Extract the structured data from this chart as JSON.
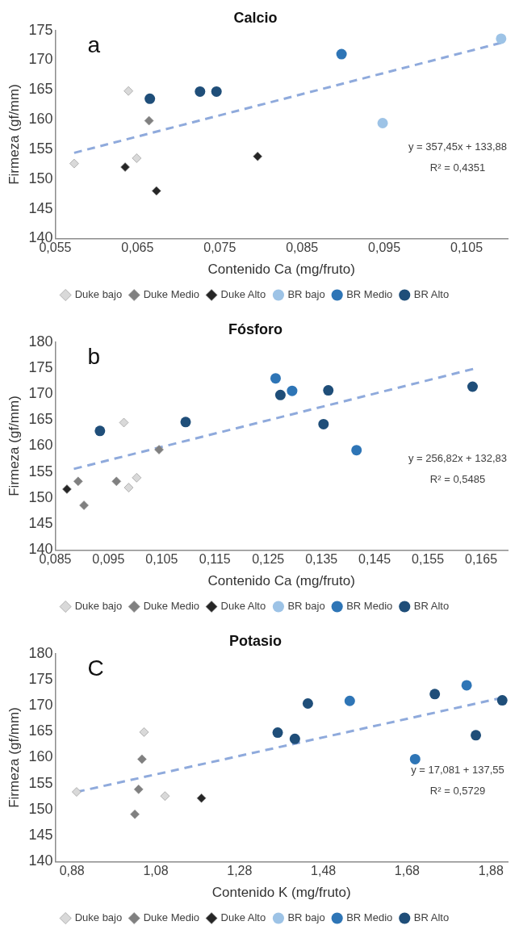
{
  "chart_data": [
    {
      "type": "scatter",
      "title": "Calcio",
      "xlabel": "Contenido Ca (mg/fruto)",
      "ylabel": "Firmeza (gf/mm)",
      "annotations": [
        "a",
        "y = 357,45x + 133,88",
        "R² = 0,4351"
      ],
      "xlim": [
        0.055,
        0.11
      ],
      "xticks": [
        {
          "value": 0.055,
          "label": "0,055"
        },
        {
          "value": 0.065,
          "label": "0,065"
        },
        {
          "value": 0.075,
          "label": "0,075"
        },
        {
          "value": 0.085,
          "label": "0,085"
        },
        {
          "value": 0.095,
          "label": "0,095"
        },
        {
          "value": 0.105,
          "label": "0,105"
        }
      ],
      "ylim": [
        140,
        175
      ],
      "yticks": [
        140,
        145,
        150,
        155,
        160,
        165,
        170,
        175
      ],
      "grid": false,
      "legend": "bottom",
      "series": [
        {
          "name": "Duke bajo",
          "color": "#d9d9d9",
          "marker": "diamond",
          "x": [
            0.0573,
            0.0639,
            0.0649
          ],
          "values": [
            152.6,
            164.8,
            153.5
          ]
        },
        {
          "name": "Duke Medio",
          "color": "#808080",
          "marker": "diamond",
          "x": [
            0.0664
          ],
          "values": [
            159.8
          ]
        },
        {
          "name": "Duke Alto",
          "color": "#262626",
          "marker": "diamond",
          "x": [
            0.0635,
            0.0673,
            0.0796
          ],
          "values": [
            152.0,
            148.0,
            153.8
          ]
        },
        {
          "name": "BR bajo",
          "color": "#9dc3e6",
          "marker": "circle",
          "x": [
            0.0948,
            0.1092
          ],
          "values": [
            159.4,
            173.6
          ]
        },
        {
          "name": "BR Medio",
          "color": "#2e75b6",
          "marker": "circle",
          "x": [
            0.0898
          ],
          "values": [
            171.0
          ]
        },
        {
          "name": "BR Alto",
          "color": "#1f4e79",
          "marker": "circle",
          "x": [
            0.0665,
            0.0726,
            0.0746
          ],
          "values": [
            163.5,
            164.7,
            164.7
          ]
        },
        {
          "type": "line",
          "color": "#8faadc",
          "marker": "none",
          "line_style": "dashed",
          "x": [
            0.0573,
            0.1092
          ],
          "values": [
            154.4,
            172.9
          ]
        }
      ]
    },
    {
      "type": "scatter",
      "title": "Fósforo",
      "xlabel": "Contenido Ca (mg/fruto)",
      "ylabel": "Firmeza (gf/mm)",
      "annotations": [
        "b",
        "y = 256,82x + 132,83",
        "R² = 0,5485"
      ],
      "xlim": [
        0.085,
        0.17
      ],
      "xticks": [
        {
          "value": 0.085,
          "label": "0,085"
        },
        {
          "value": 0.095,
          "label": "0,095"
        },
        {
          "value": 0.105,
          "label": "0,105"
        },
        {
          "value": 0.115,
          "label": "0,115"
        },
        {
          "value": 0.125,
          "label": "0,125"
        },
        {
          "value": 0.135,
          "label": "0,135"
        },
        {
          "value": 0.145,
          "label": "0,145"
        },
        {
          "value": 0.155,
          "label": "0,155"
        },
        {
          "value": 0.165,
          "label": "0,165"
        }
      ],
      "ylim": [
        140,
        180
      ],
      "yticks": [
        140,
        145,
        150,
        155,
        160,
        165,
        170,
        175,
        180
      ],
      "grid": false,
      "legend": "bottom",
      "series": [
        {
          "name": "Duke bajo",
          "color": "#d9d9d9",
          "marker": "diamond",
          "x": [
            0.0979,
            0.0988,
            0.1003
          ],
          "values": [
            164.5,
            152.0,
            153.9
          ]
        },
        {
          "name": "Duke Medio",
          "color": "#808080",
          "marker": "diamond",
          "x": [
            0.0893,
            0.0904,
            0.0965,
            0.1045
          ],
          "values": [
            153.2,
            148.6,
            153.2,
            159.3
          ]
        },
        {
          "name": "Duke Alto",
          "color": "#262626",
          "marker": "diamond",
          "x": [
            0.0872
          ],
          "values": [
            151.7
          ]
        },
        {
          "name": "BR bajo",
          "color": "#9dc3e6",
          "marker": "circle"
        },
        {
          "name": "BR Medio",
          "color": "#2e75b6",
          "marker": "circle",
          "x": [
            0.1264,
            0.1295,
            0.1416
          ],
          "values": [
            173.0,
            170.6,
            159.2
          ]
        },
        {
          "name": "BR Alto",
          "color": "#1f4e79",
          "marker": "circle",
          "x": [
            0.0934,
            0.1095,
            0.1273,
            0.1363,
            0.1354,
            0.1634
          ],
          "values": [
            162.9,
            164.6,
            169.8,
            170.7,
            164.2,
            171.4
          ]
        },
        {
          "type": "line",
          "color": "#8faadc",
          "marker": "none",
          "line_style": "dashed",
          "x": [
            0.0885,
            0.1635
          ],
          "values": [
            155.6,
            174.8
          ]
        }
      ]
    },
    {
      "type": "scatter",
      "title": "Potasio",
      "xlabel": "Contenido K (mg/fruto)",
      "ylabel": "Firmeza (gf/mm)",
      "annotations": [
        "C",
        "y = 17,081 + 137,55",
        "R² = 0,5729"
      ],
      "xlim": [
        0.84,
        1.92
      ],
      "xticks": [
        {
          "value": 0.88,
          "label": "0,88"
        },
        {
          "value": 1.08,
          "label": "1,08"
        },
        {
          "value": 1.28,
          "label": "1,28"
        },
        {
          "value": 1.48,
          "label": "1,48"
        },
        {
          "value": 1.68,
          "label": "1,68"
        },
        {
          "value": 1.88,
          "label": "1,88"
        }
      ],
      "ylim": [
        140,
        180
      ],
      "yticks": [
        140,
        145,
        150,
        155,
        160,
        165,
        170,
        175,
        180
      ],
      "grid": false,
      "legend": "bottom",
      "series": [
        {
          "name": "Duke bajo",
          "color": "#d9d9d9",
          "marker": "diamond",
          "x": [
            0.891,
            1.052,
            1.102
          ],
          "values": [
            153.4,
            164.9,
            152.6
          ]
        },
        {
          "name": "Duke Medio",
          "color": "#808080",
          "marker": "diamond",
          "x": [
            1.047,
            1.039,
            1.03
          ],
          "values": [
            159.7,
            153.9,
            149.1
          ]
        },
        {
          "name": "Duke Alto",
          "color": "#262626",
          "marker": "diamond",
          "x": [
            1.189
          ],
          "values": [
            152.2
          ]
        },
        {
          "name": "BR bajo",
          "color": "#9dc3e6",
          "marker": "circle"
        },
        {
          "name": "BR Medio",
          "color": "#2e75b6",
          "marker": "circle",
          "x": [
            1.543,
            1.699,
            1.822
          ],
          "values": [
            170.9,
            159.7,
            173.9
          ]
        },
        {
          "name": "BR Alto",
          "color": "#1f4e79",
          "marker": "circle",
          "x": [
            1.371,
            1.412,
            1.443,
            1.746,
            1.844,
            1.907
          ],
          "values": [
            164.8,
            163.6,
            170.4,
            172.2,
            164.3,
            171.0
          ]
        },
        {
          "type": "line",
          "color": "#8faadc",
          "marker": "none",
          "line_style": "dashed",
          "x": [
            0.891,
            1.907
          ],
          "values": [
            153.4,
            171.5
          ]
        }
      ]
    }
  ]
}
